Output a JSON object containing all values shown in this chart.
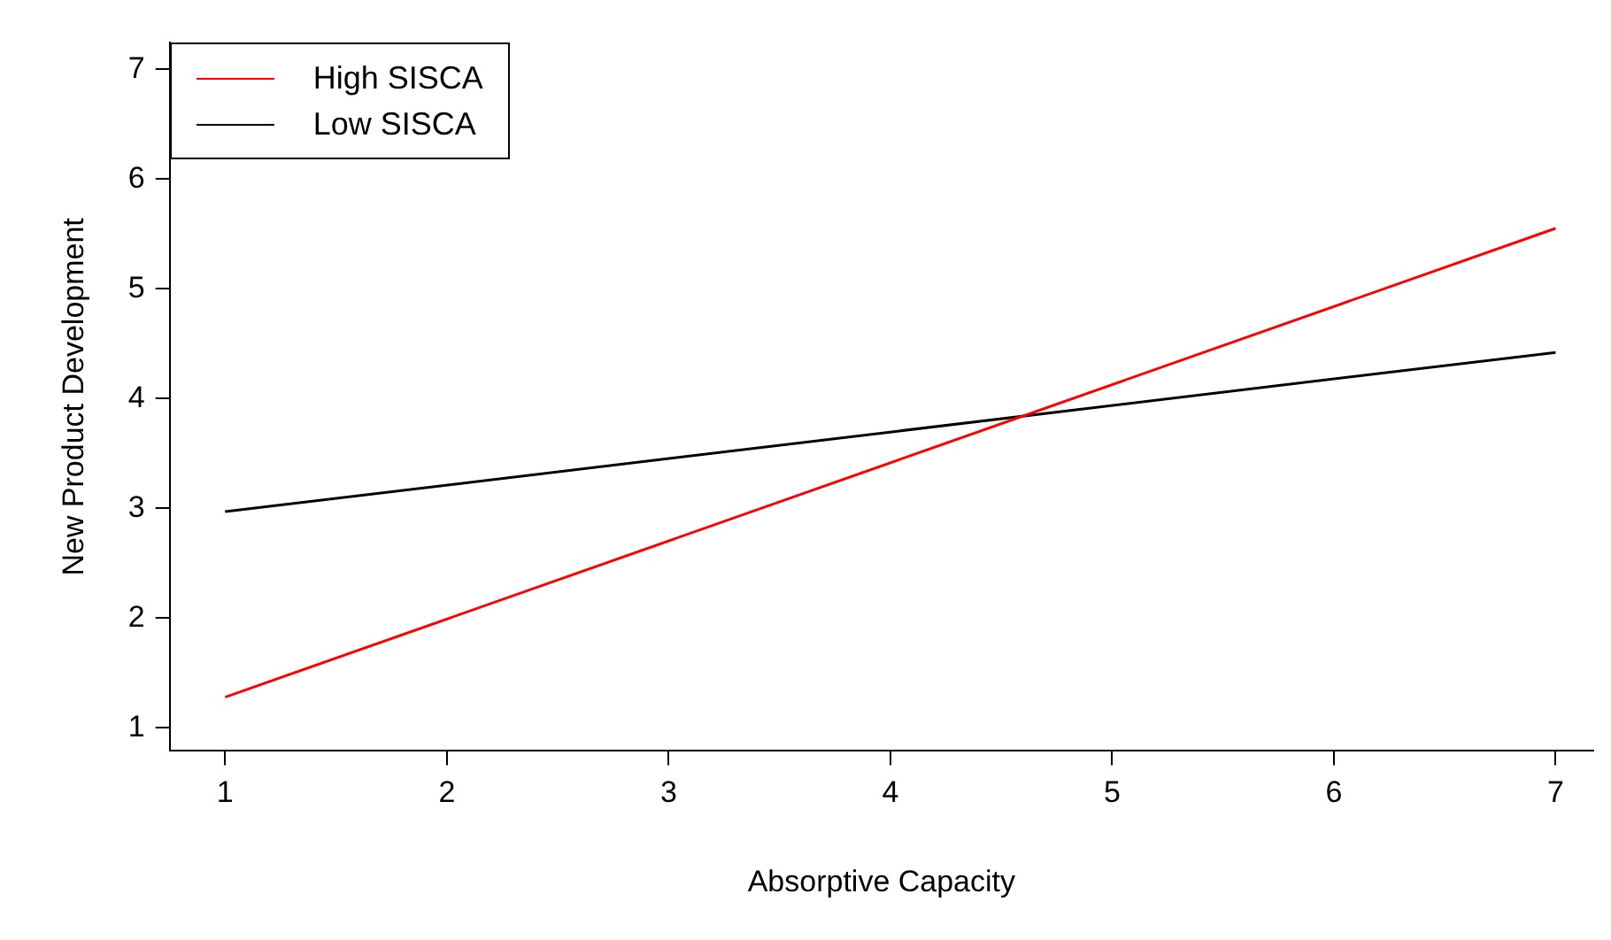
{
  "chart_data": {
    "type": "line",
    "xlabel": "Absorptive Capacity",
    "ylabel": "New Product Development",
    "x": [
      1,
      7
    ],
    "series": [
      {
        "name": "High SISCA",
        "color": "#ff0000",
        "values": [
          1.28,
          5.55
        ]
      },
      {
        "name": "Low SISCA",
        "color": "#000000",
        "values": [
          2.97,
          4.42
        ]
      }
    ],
    "xlim": [
      0.75,
      7.17
    ],
    "xticks": [
      1,
      2,
      3,
      4,
      5,
      6,
      7
    ],
    "ylim": [
      0.79,
      7.24
    ],
    "yticks": [
      1,
      2,
      3,
      4,
      5,
      6,
      7
    ],
    "grid": false,
    "legend": "top left",
    "marker": "none",
    "line_style": "solid"
  }
}
